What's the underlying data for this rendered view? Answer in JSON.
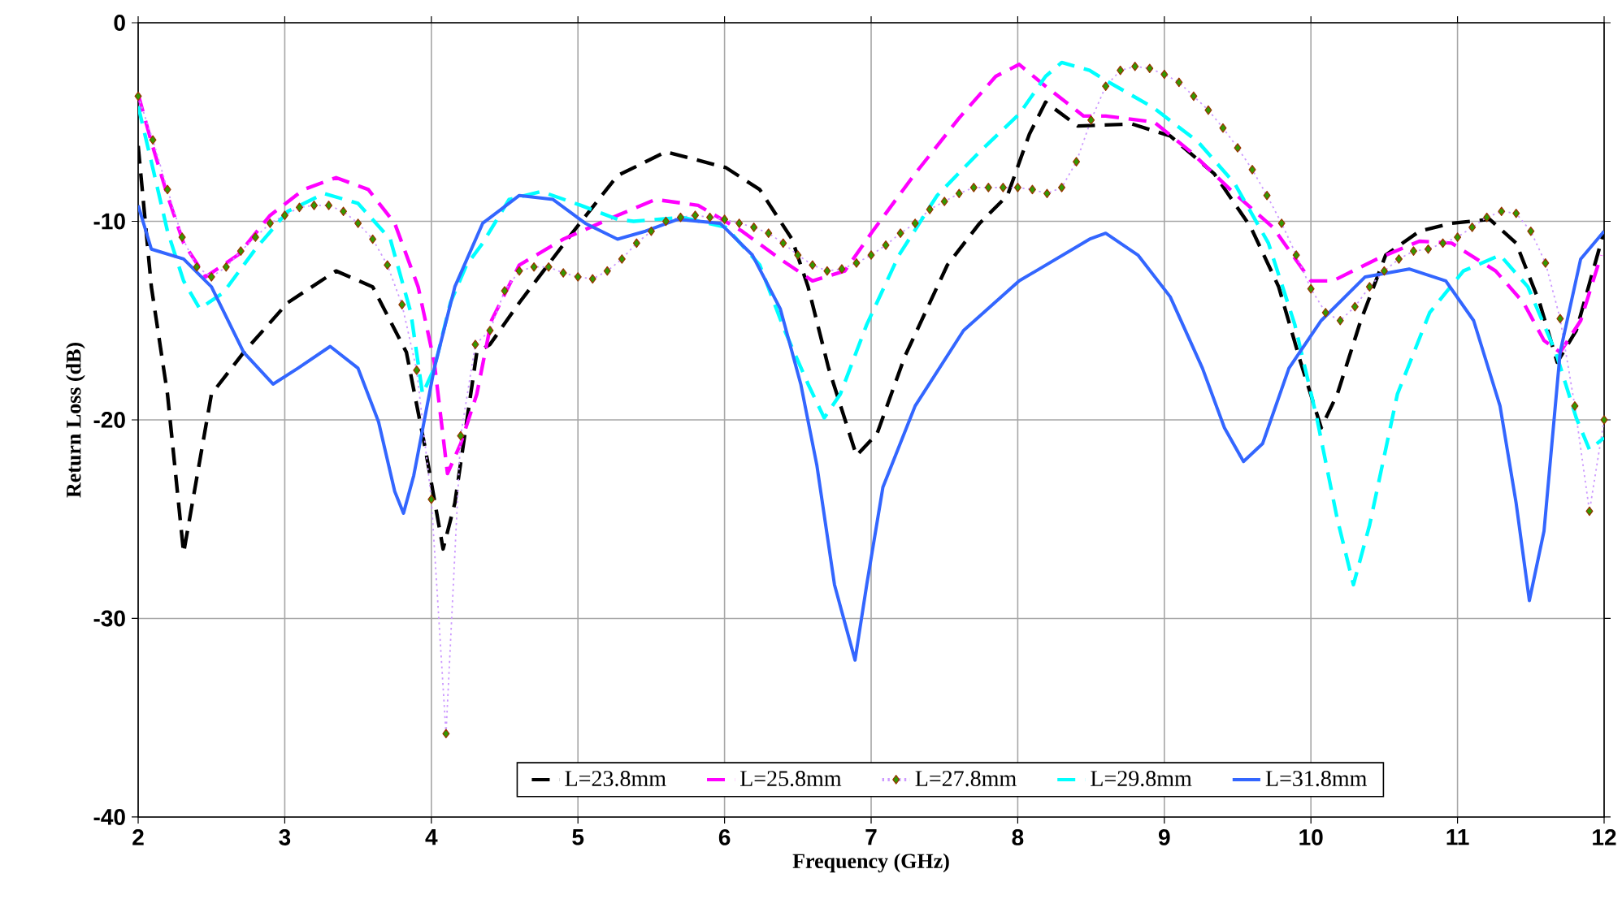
{
  "chart_data": {
    "type": "line",
    "xlabel": "Frequency (GHz)",
    "ylabel": "Return Loss (dB)",
    "xlim": [
      2,
      12
    ],
    "ylim": [
      -40,
      0
    ],
    "xticks": [
      2,
      3,
      4,
      5,
      6,
      7,
      8,
      9,
      10,
      11,
      12
    ],
    "yticks": [
      -40,
      -30,
      -20,
      -10,
      0
    ],
    "grid": true,
    "legend": "bottom",
    "series": [
      {
        "name": "L=23.8mm",
        "color": "#000000",
        "line_style": "dashed",
        "x": [
          2.0,
          2.09,
          2.2,
          2.31,
          2.5,
          2.72,
          3.02,
          3.35,
          3.6,
          3.83,
          3.96,
          4.08,
          4.16,
          4.31,
          4.4,
          4.6,
          4.97,
          5.27,
          5.6,
          6.01,
          6.24,
          6.46,
          6.57,
          6.71,
          6.9,
          7.04,
          7.23,
          7.52,
          7.74,
          7.93,
          8.08,
          8.19,
          8.41,
          8.78,
          9.04,
          9.34,
          9.59,
          9.78,
          9.93,
          10.07,
          10.18,
          10.34,
          10.51,
          10.74,
          10.96,
          11.22,
          11.4,
          11.56,
          11.68,
          11.81,
          12.0
        ],
        "values": [
          -6.2,
          -13.3,
          -18.7,
          -26.7,
          -18.7,
          -16.6,
          -14.1,
          -12.5,
          -13.3,
          -16.6,
          -21.5,
          -26.5,
          -24.2,
          -16.6,
          -16.2,
          -14.1,
          -10.5,
          -7.7,
          -6.5,
          -7.3,
          -8.4,
          -10.9,
          -13.3,
          -17.4,
          -21.8,
          -20.7,
          -16.8,
          -12.2,
          -10.1,
          -8.7,
          -5.6,
          -4.0,
          -5.2,
          -5.1,
          -5.7,
          -7.6,
          -10.3,
          -13.3,
          -17.1,
          -20.4,
          -18.7,
          -15.0,
          -11.7,
          -10.5,
          -10.1,
          -9.9,
          -11.1,
          -14.1,
          -17.1,
          -15.5,
          -10.5
        ]
      },
      {
        "name": "L=25.8mm",
        "color": "#ff00ff",
        "line_style": "dashed",
        "x": [
          2.0,
          2.09,
          2.2,
          2.31,
          2.46,
          2.68,
          2.9,
          3.13,
          3.35,
          3.57,
          3.75,
          3.91,
          4.02,
          4.11,
          4.2,
          4.31,
          4.41,
          4.6,
          4.9,
          5.27,
          5.53,
          5.82,
          6.12,
          6.38,
          6.6,
          6.82,
          7.01,
          7.3,
          7.6,
          7.85,
          8.01,
          8.19,
          8.45,
          8.6,
          8.93,
          9.18,
          9.45,
          9.74,
          10.0,
          10.15,
          10.45,
          10.74,
          10.96,
          11.26,
          11.45,
          11.59,
          11.7,
          11.84,
          11.98
        ],
        "values": [
          -3.6,
          -6.0,
          -8.7,
          -11.1,
          -12.8,
          -11.7,
          -9.7,
          -8.4,
          -7.8,
          -8.4,
          -10.1,
          -13.3,
          -17.1,
          -22.7,
          -21.2,
          -18.7,
          -15.0,
          -12.2,
          -10.9,
          -9.7,
          -8.9,
          -9.2,
          -10.5,
          -11.9,
          -13.0,
          -12.5,
          -10.5,
          -7.6,
          -4.8,
          -2.7,
          -2.1,
          -3.2,
          -4.7,
          -4.7,
          -5.0,
          -6.5,
          -8.4,
          -10.3,
          -13.0,
          -13.0,
          -11.9,
          -11.0,
          -11.1,
          -12.5,
          -14.1,
          -16.0,
          -16.6,
          -15.0,
          -11.7
        ]
      },
      {
        "name": "L=27.8mm",
        "color": "#cc99ff",
        "line_style": "dotted",
        "marker": "diamond",
        "x": [
          2.0,
          2.1,
          2.2,
          2.3,
          2.4,
          2.5,
          2.6,
          2.7,
          2.8,
          2.9,
          3.0,
          3.1,
          3.2,
          3.3,
          3.4,
          3.5,
          3.6,
          3.7,
          3.8,
          3.9,
          4.0,
          4.1,
          4.2,
          4.3,
          4.4,
          4.5,
          4.6,
          4.7,
          4.8,
          4.9,
          5.0,
          5.1,
          5.2,
          5.3,
          5.4,
          5.5,
          5.6,
          5.7,
          5.8,
          5.9,
          6.0,
          6.1,
          6.2,
          6.3,
          6.4,
          6.5,
          6.6,
          6.7,
          6.8,
          6.9,
          7.0,
          7.1,
          7.2,
          7.3,
          7.4,
          7.5,
          7.6,
          7.7,
          7.8,
          7.9,
          8.0,
          8.1,
          8.2,
          8.3,
          8.4,
          8.5,
          8.6,
          8.7,
          8.8,
          8.9,
          9.0,
          9.1,
          9.2,
          9.3,
          9.4,
          9.5,
          9.6,
          9.7,
          9.8,
          9.9,
          10.0,
          10.1,
          10.2,
          10.3,
          10.4,
          10.5,
          10.6,
          10.7,
          10.8,
          10.9,
          11.0,
          11.1,
          11.2,
          11.3,
          11.4,
          11.5,
          11.6,
          11.7,
          11.8,
          11.9,
          12.0
        ],
        "values": [
          -3.7,
          -5.9,
          -8.4,
          -10.8,
          -12.3,
          -12.8,
          -12.3,
          -11.5,
          -10.8,
          -10.1,
          -9.7,
          -9.3,
          -9.2,
          -9.2,
          -9.5,
          -10.1,
          -10.9,
          -12.2,
          -14.2,
          -17.5,
          -24.0,
          -35.8,
          -20.8,
          -16.2,
          -15.5,
          -13.5,
          -12.5,
          -12.3,
          -12.3,
          -12.6,
          -12.8,
          -12.9,
          -12.5,
          -11.9,
          -11.1,
          -10.5,
          -10.0,
          -9.8,
          -9.7,
          -9.8,
          -9.9,
          -10.1,
          -10.3,
          -10.6,
          -11.1,
          -11.7,
          -12.2,
          -12.5,
          -12.4,
          -12.1,
          -11.7,
          -11.2,
          -10.6,
          -10.1,
          -9.4,
          -9.0,
          -8.6,
          -8.3,
          -8.3,
          -8.3,
          -8.3,
          -8.4,
          -8.6,
          -8.3,
          -7.0,
          -4.9,
          -3.2,
          -2.4,
          -2.2,
          -2.3,
          -2.6,
          -3.0,
          -3.7,
          -4.4,
          -5.3,
          -6.3,
          -7.4,
          -8.7,
          -10.1,
          -11.7,
          -13.4,
          -14.6,
          -15.0,
          -14.3,
          -13.3,
          -12.5,
          -11.9,
          -11.5,
          -11.4,
          -11.1,
          -10.8,
          -10.3,
          -9.8,
          -9.5,
          -9.6,
          -10.5,
          -12.1,
          -14.9,
          -19.3,
          -24.6,
          -20.0
        ]
      },
      {
        "name": "L=29.8mm",
        "color": "#00ffff",
        "line_style": "dashed",
        "x": [
          2.0,
          2.09,
          2.2,
          2.31,
          2.42,
          2.58,
          2.8,
          3.02,
          3.27,
          3.5,
          3.72,
          3.86,
          3.94,
          4.02,
          4.13,
          4.24,
          4.35,
          4.53,
          4.75,
          5.02,
          5.27,
          5.38,
          5.71,
          6.01,
          6.24,
          6.41,
          6.57,
          6.68,
          6.79,
          6.97,
          7.19,
          7.45,
          7.74,
          8.01,
          8.19,
          8.3,
          8.49,
          8.6,
          8.93,
          9.23,
          9.48,
          9.71,
          9.89,
          10.04,
          10.18,
          10.29,
          10.4,
          10.59,
          10.81,
          11.04,
          11.29,
          11.48,
          11.67,
          11.81,
          11.9,
          12.0
        ],
        "values": [
          -4.2,
          -7.0,
          -10.5,
          -13.0,
          -14.4,
          -13.6,
          -11.4,
          -9.5,
          -8.6,
          -9.1,
          -10.9,
          -14.6,
          -18.7,
          -17.4,
          -14.1,
          -12.2,
          -11.1,
          -8.9,
          -8.5,
          -9.2,
          -9.9,
          -10.0,
          -9.8,
          -10.3,
          -12.2,
          -15.5,
          -18.2,
          -19.9,
          -18.7,
          -15.2,
          -11.7,
          -8.7,
          -6.5,
          -4.6,
          -2.7,
          -2.0,
          -2.4,
          -2.9,
          -4.3,
          -6.0,
          -8.1,
          -11.1,
          -15.2,
          -19.9,
          -25.0,
          -28.3,
          -25.3,
          -18.7,
          -14.6,
          -12.5,
          -11.7,
          -13.3,
          -16.6,
          -19.9,
          -21.5,
          -20.9
        ]
      },
      {
        "name": "L=31.8mm",
        "color": "#3366ff",
        "line_style": "solid",
        "x": [
          2.0,
          2.09,
          2.31,
          2.5,
          2.72,
          2.92,
          3.09,
          3.31,
          3.5,
          3.64,
          3.75,
          3.81,
          3.88,
          4.02,
          4.16,
          4.35,
          4.6,
          4.83,
          5.05,
          5.27,
          5.46,
          5.68,
          5.97,
          6.19,
          6.38,
          6.52,
          6.63,
          6.75,
          6.89,
          6.97,
          7.08,
          7.3,
          7.63,
          8.01,
          8.49,
          8.6,
          8.82,
          9.04,
          9.26,
          9.41,
          9.54,
          9.67,
          9.85,
          10.07,
          10.37,
          10.67,
          10.92,
          11.11,
          11.29,
          11.4,
          11.49,
          11.59,
          11.7,
          11.84,
          12.0
        ],
        "values": [
          -9.2,
          -11.4,
          -11.9,
          -13.3,
          -16.6,
          -18.2,
          -17.4,
          -16.3,
          -17.4,
          -20.1,
          -23.6,
          -24.7,
          -22.8,
          -17.4,
          -13.3,
          -10.1,
          -8.7,
          -8.9,
          -10.1,
          -10.9,
          -10.5,
          -9.9,
          -10.1,
          -11.7,
          -14.4,
          -18.2,
          -22.3,
          -28.3,
          -32.1,
          -28.3,
          -23.4,
          -19.3,
          -15.5,
          -13.0,
          -10.9,
          -10.6,
          -11.7,
          -13.8,
          -17.4,
          -20.4,
          -22.1,
          -21.2,
          -17.4,
          -15.0,
          -12.8,
          -12.4,
          -13.0,
          -15.0,
          -19.3,
          -24.2,
          -29.1,
          -25.6,
          -16.6,
          -11.9,
          -10.5
        ]
      }
    ]
  }
}
